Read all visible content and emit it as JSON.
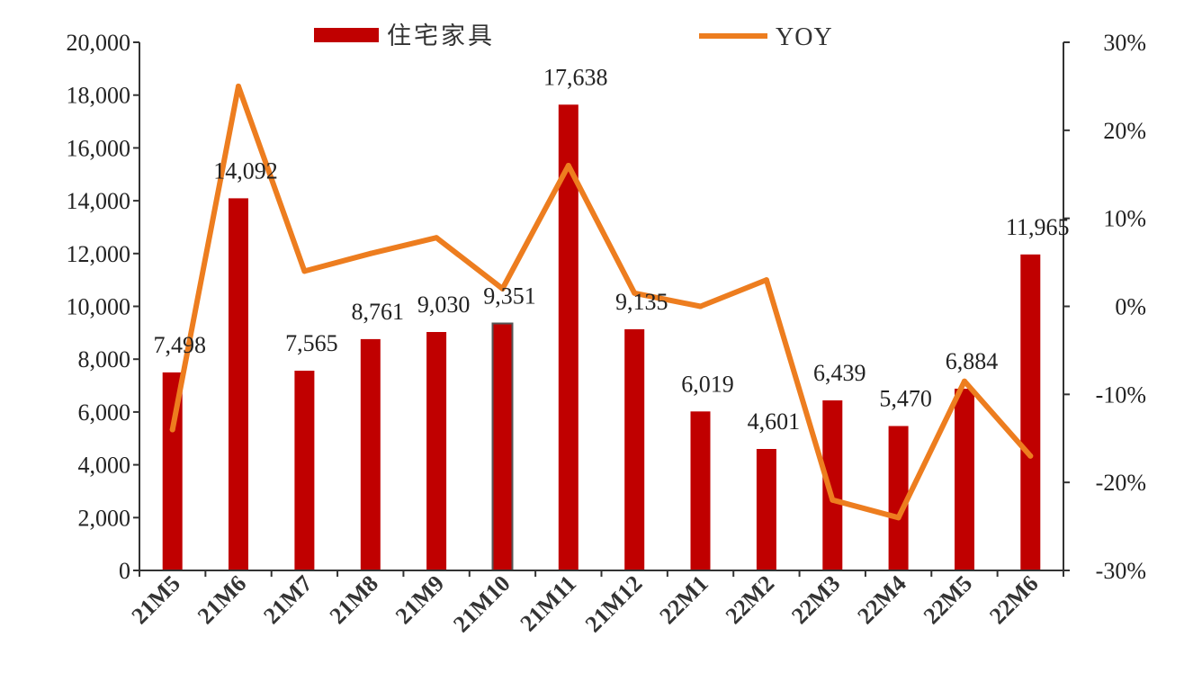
{
  "chart_data": {
    "type": "bar",
    "categories": [
      "21M5",
      "21M6",
      "21M7",
      "21M8",
      "21M9",
      "21M10",
      "21M11",
      "21M12",
      "22M1",
      "22M2",
      "22M3",
      "22M4",
      "22M5",
      "22M6"
    ],
    "series": [
      {
        "name": "住宅家具",
        "type": "bar",
        "axis": "left",
        "color": "#c00000",
        "values": [
          7498,
          14092,
          7565,
          8761,
          9030,
          9351,
          17638,
          9135,
          6019,
          4601,
          6439,
          5470,
          6884,
          11965
        ],
        "data_labels": [
          "7,498",
          "14,092",
          "7,565",
          "8,761",
          "9,030",
          "9,351",
          "17,638",
          "9,135",
          "6,019",
          "4,601",
          "6,439",
          "5,470",
          "6,884",
          "11,965"
        ]
      },
      {
        "name": "YOY",
        "type": "line",
        "axis": "right",
        "color": "#ed7d1f",
        "values": [
          -14,
          25,
          4,
          6,
          7.8,
          2,
          16,
          1.5,
          0,
          3,
          -22,
          -24,
          -8.5,
          -17
        ]
      }
    ],
    "left_axis": {
      "ylim": [
        0,
        20000
      ],
      "ticks": [
        0,
        2000,
        4000,
        6000,
        8000,
        10000,
        12000,
        14000,
        16000,
        18000,
        20000
      ],
      "tick_labels": [
        "0",
        "2,000",
        "4,000",
        "6,000",
        "8,000",
        "10,000",
        "12,000",
        "14,000",
        "16,000",
        "18,000",
        "20,000"
      ]
    },
    "right_axis": {
      "ylim": [
        -30,
        30
      ],
      "ticks": [
        -30,
        -20,
        -10,
        0,
        10,
        20,
        30
      ],
      "tick_labels": [
        "-30%",
        "-20%",
        "-10%",
        "0%",
        "10%",
        "20%",
        "30%"
      ]
    },
    "legend": {
      "position": "top",
      "items": [
        "住宅家具",
        "YOY"
      ]
    },
    "grid": false,
    "title": "",
    "xlabel": "",
    "ylabel": ""
  }
}
